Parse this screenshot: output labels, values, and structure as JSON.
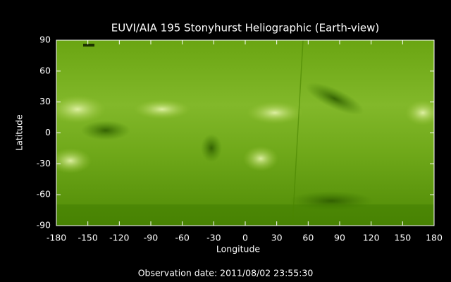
{
  "chart_data": {
    "type": "image",
    "title": "EUVI/AIA 195 Stonyhurst Heliographic (Earth-view)",
    "x_label": "Longitude",
    "y_label": "Latitude",
    "annotation": "Observation date: 2011/08/02 23:55:30",
    "xlim": [
      -180,
      180
    ],
    "ylim": [
      -90,
      90
    ],
    "xticks": [
      -180,
      -150,
      -120,
      -90,
      -60,
      -30,
      0,
      30,
      60,
      90,
      120,
      150,
      180
    ],
    "yticks": [
      -90,
      -60,
      -30,
      0,
      30,
      60,
      90
    ]
  }
}
